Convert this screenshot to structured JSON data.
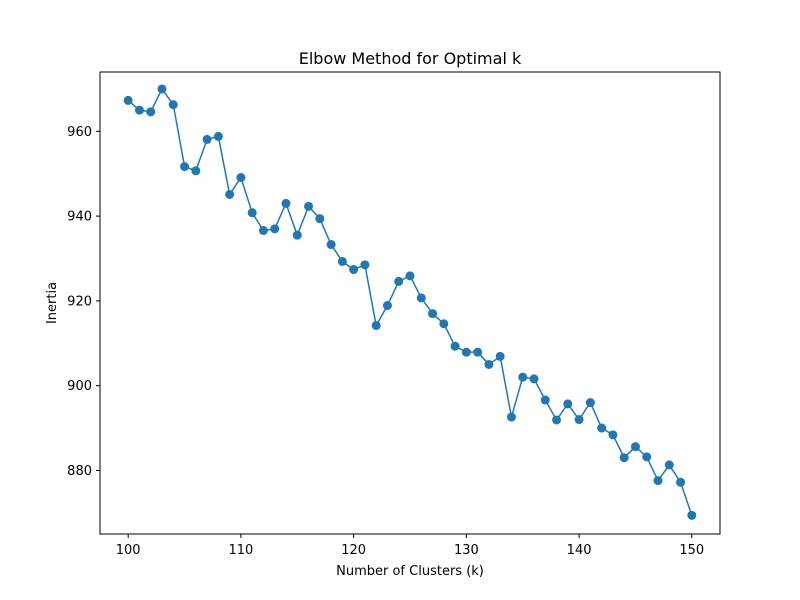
{
  "chart_data": {
    "type": "line",
    "title": "Elbow Method for Optimal k",
    "xlabel": "Number of Clusters (k)",
    "ylabel": "Inertia",
    "xlim": [
      97.5,
      152.5
    ],
    "ylim": [
      865,
      974
    ],
    "xticks": [
      100,
      110,
      120,
      130,
      140,
      150
    ],
    "yticks": [
      880,
      900,
      920,
      940,
      960
    ],
    "grid": false,
    "series": [
      {
        "color": "#1f77b4",
        "marker": "circle",
        "x": [
          100,
          101,
          102,
          103,
          104,
          105,
          106,
          107,
          108,
          109,
          110,
          111,
          112,
          113,
          114,
          115,
          116,
          117,
          118,
          119,
          120,
          121,
          122,
          123,
          124,
          125,
          126,
          127,
          128,
          129,
          130,
          131,
          132,
          133,
          134,
          135,
          136,
          137,
          138,
          139,
          140,
          141,
          142,
          143,
          144,
          145,
          146,
          147,
          148,
          149,
          150
        ],
        "y": [
          967.3,
          965.0,
          964.6,
          970.0,
          966.3,
          951.7,
          950.7,
          958.1,
          958.8,
          945.1,
          949.1,
          940.8,
          936.6,
          937.0,
          943.0,
          935.5,
          942.3,
          939.4,
          933.3,
          929.3,
          927.4,
          928.5,
          914.2,
          918.9,
          924.6,
          925.9,
          920.7,
          917.0,
          914.6,
          909.3,
          907.9,
          907.9,
          905.0,
          906.9,
          892.6,
          902.0,
          901.6,
          896.6,
          891.9,
          895.7,
          892.0,
          896.0,
          890.0,
          888.4,
          883.0,
          885.6,
          883.2,
          877.6,
          881.3,
          877.2,
          869.4
        ]
      }
    ]
  }
}
